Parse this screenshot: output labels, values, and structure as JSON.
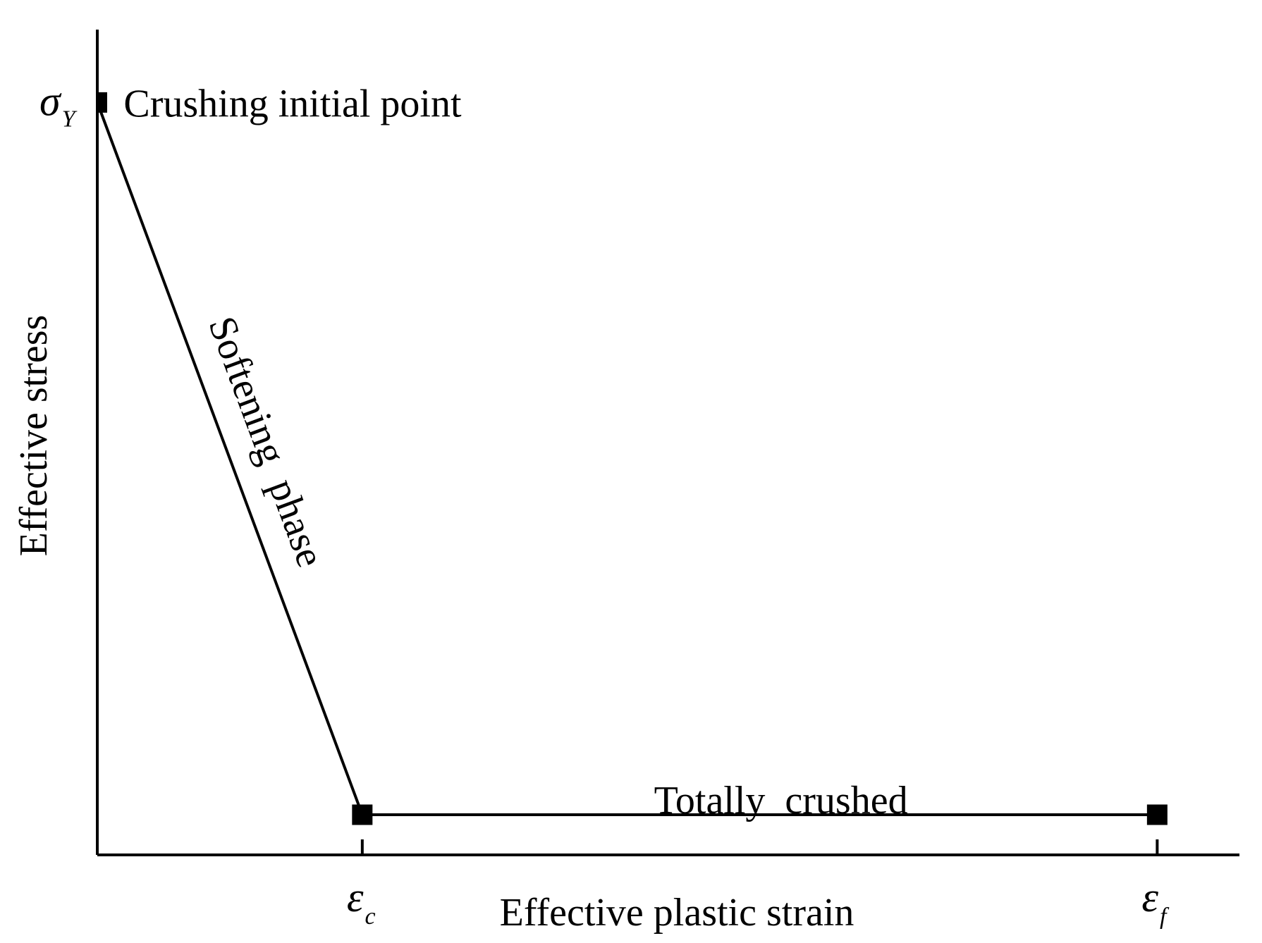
{
  "chart_data": {
    "type": "line",
    "title": "",
    "xlabel": "Effective plastic strain",
    "ylabel": "Effective stress",
    "grid": false,
    "legend": "none",
    "xlim": [
      0,
      1
    ],
    "ylim": [
      0,
      1
    ],
    "x_ticks": [
      {
        "x": 0.232,
        "symbol": "ε",
        "subscript": "c"
      },
      {
        "x": 0.928,
        "symbol": "ε",
        "subscript": "f"
      }
    ],
    "y_ticks": [
      {
        "y": 0.918,
        "symbol": "σ",
        "subscript": "Y"
      }
    ],
    "series": [
      {
        "points": [
          {
            "x": 0.0,
            "y": 0.918
          },
          {
            "x": 0.232,
            "y": 0.049
          },
          {
            "x": 0.928,
            "y": 0.049
          }
        ]
      }
    ],
    "markers": [
      {
        "x": 0.0,
        "y": 0.918
      },
      {
        "x": 0.232,
        "y": 0.049
      },
      {
        "x": 0.928,
        "y": 0.049
      }
    ],
    "annotations": [
      {
        "text": "Crushing initial point",
        "x": 0.02,
        "y": 0.918
      },
      {
        "text": "Softening  phase",
        "x": 0.125,
        "y": 0.49
      },
      {
        "text": "Totally  crushed",
        "x": 0.58,
        "y": 0.085
      }
    ],
    "color": "#000000"
  }
}
